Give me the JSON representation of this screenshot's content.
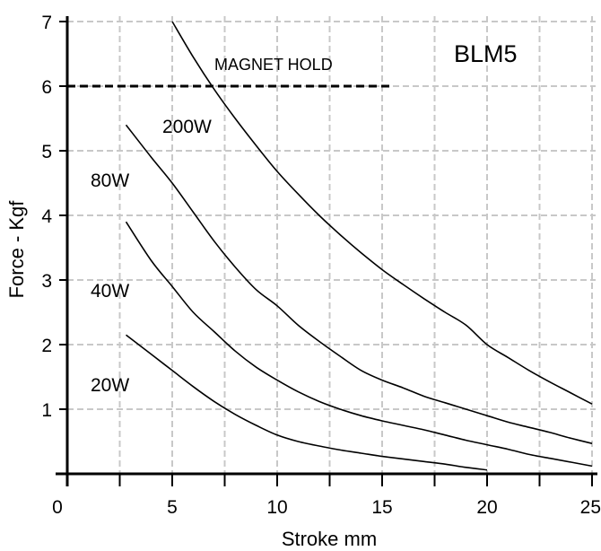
{
  "chart_data": {
    "type": "line",
    "title": "BLM5",
    "xlabel": "Stroke mm",
    "ylabel": "Force - Kgf",
    "xlim": [
      0,
      25
    ],
    "ylim": [
      0,
      7
    ],
    "x_ticks": [
      0,
      5,
      10,
      15,
      20,
      25
    ],
    "y_ticks": [
      1,
      2,
      3,
      4,
      5,
      6,
      7
    ],
    "grid": true,
    "colors": {
      "grid": "#c8c8c8",
      "axis": "#000000",
      "series": "#000000"
    },
    "annotation": {
      "label": "MAGNET HOLD",
      "y": 6,
      "x_range": [
        0,
        15.5
      ]
    },
    "series": [
      {
        "name": "200W",
        "x": [
          5,
          6,
          7,
          8,
          9,
          10,
          11,
          12,
          13,
          14,
          15,
          16,
          17,
          18,
          19,
          20,
          21,
          22,
          23,
          24,
          25
        ],
        "y": [
          7.0,
          6.45,
          5.95,
          5.5,
          5.08,
          4.68,
          4.33,
          4.0,
          3.7,
          3.42,
          3.16,
          2.93,
          2.71,
          2.5,
          2.3,
          2.0,
          1.8,
          1.6,
          1.42,
          1.25,
          1.08
        ]
      },
      {
        "name": "80W",
        "x": [
          2.8,
          4,
          5,
          6,
          7,
          8,
          9,
          10,
          11,
          12,
          13,
          14,
          15,
          16,
          17,
          18,
          19,
          20,
          21,
          22,
          23,
          24,
          25
        ],
        "y": [
          5.4,
          4.9,
          4.5,
          4.05,
          3.6,
          3.2,
          2.85,
          2.6,
          2.3,
          2.05,
          1.82,
          1.6,
          1.45,
          1.33,
          1.2,
          1.1,
          1.0,
          0.9,
          0.8,
          0.72,
          0.64,
          0.55,
          0.47
        ]
      },
      {
        "name": "40W",
        "x": [
          2.8,
          4,
          5,
          6,
          7,
          8,
          9,
          10,
          11,
          12,
          13,
          14,
          15,
          16,
          17,
          18,
          19,
          20,
          21,
          22,
          23,
          24,
          25
        ],
        "y": [
          3.9,
          3.3,
          2.9,
          2.5,
          2.2,
          1.9,
          1.65,
          1.45,
          1.27,
          1.12,
          1.0,
          0.9,
          0.82,
          0.75,
          0.68,
          0.6,
          0.52,
          0.45,
          0.38,
          0.3,
          0.24,
          0.18,
          0.12
        ]
      },
      {
        "name": "20W",
        "x": [
          2.8,
          4,
          5,
          6,
          7,
          8,
          9,
          10,
          11,
          12,
          13,
          14,
          15,
          16,
          17,
          18,
          19,
          20
        ],
        "y": [
          2.15,
          1.85,
          1.6,
          1.35,
          1.12,
          0.92,
          0.75,
          0.6,
          0.5,
          0.43,
          0.37,
          0.32,
          0.27,
          0.23,
          0.19,
          0.15,
          0.1,
          0.06
        ]
      }
    ]
  }
}
